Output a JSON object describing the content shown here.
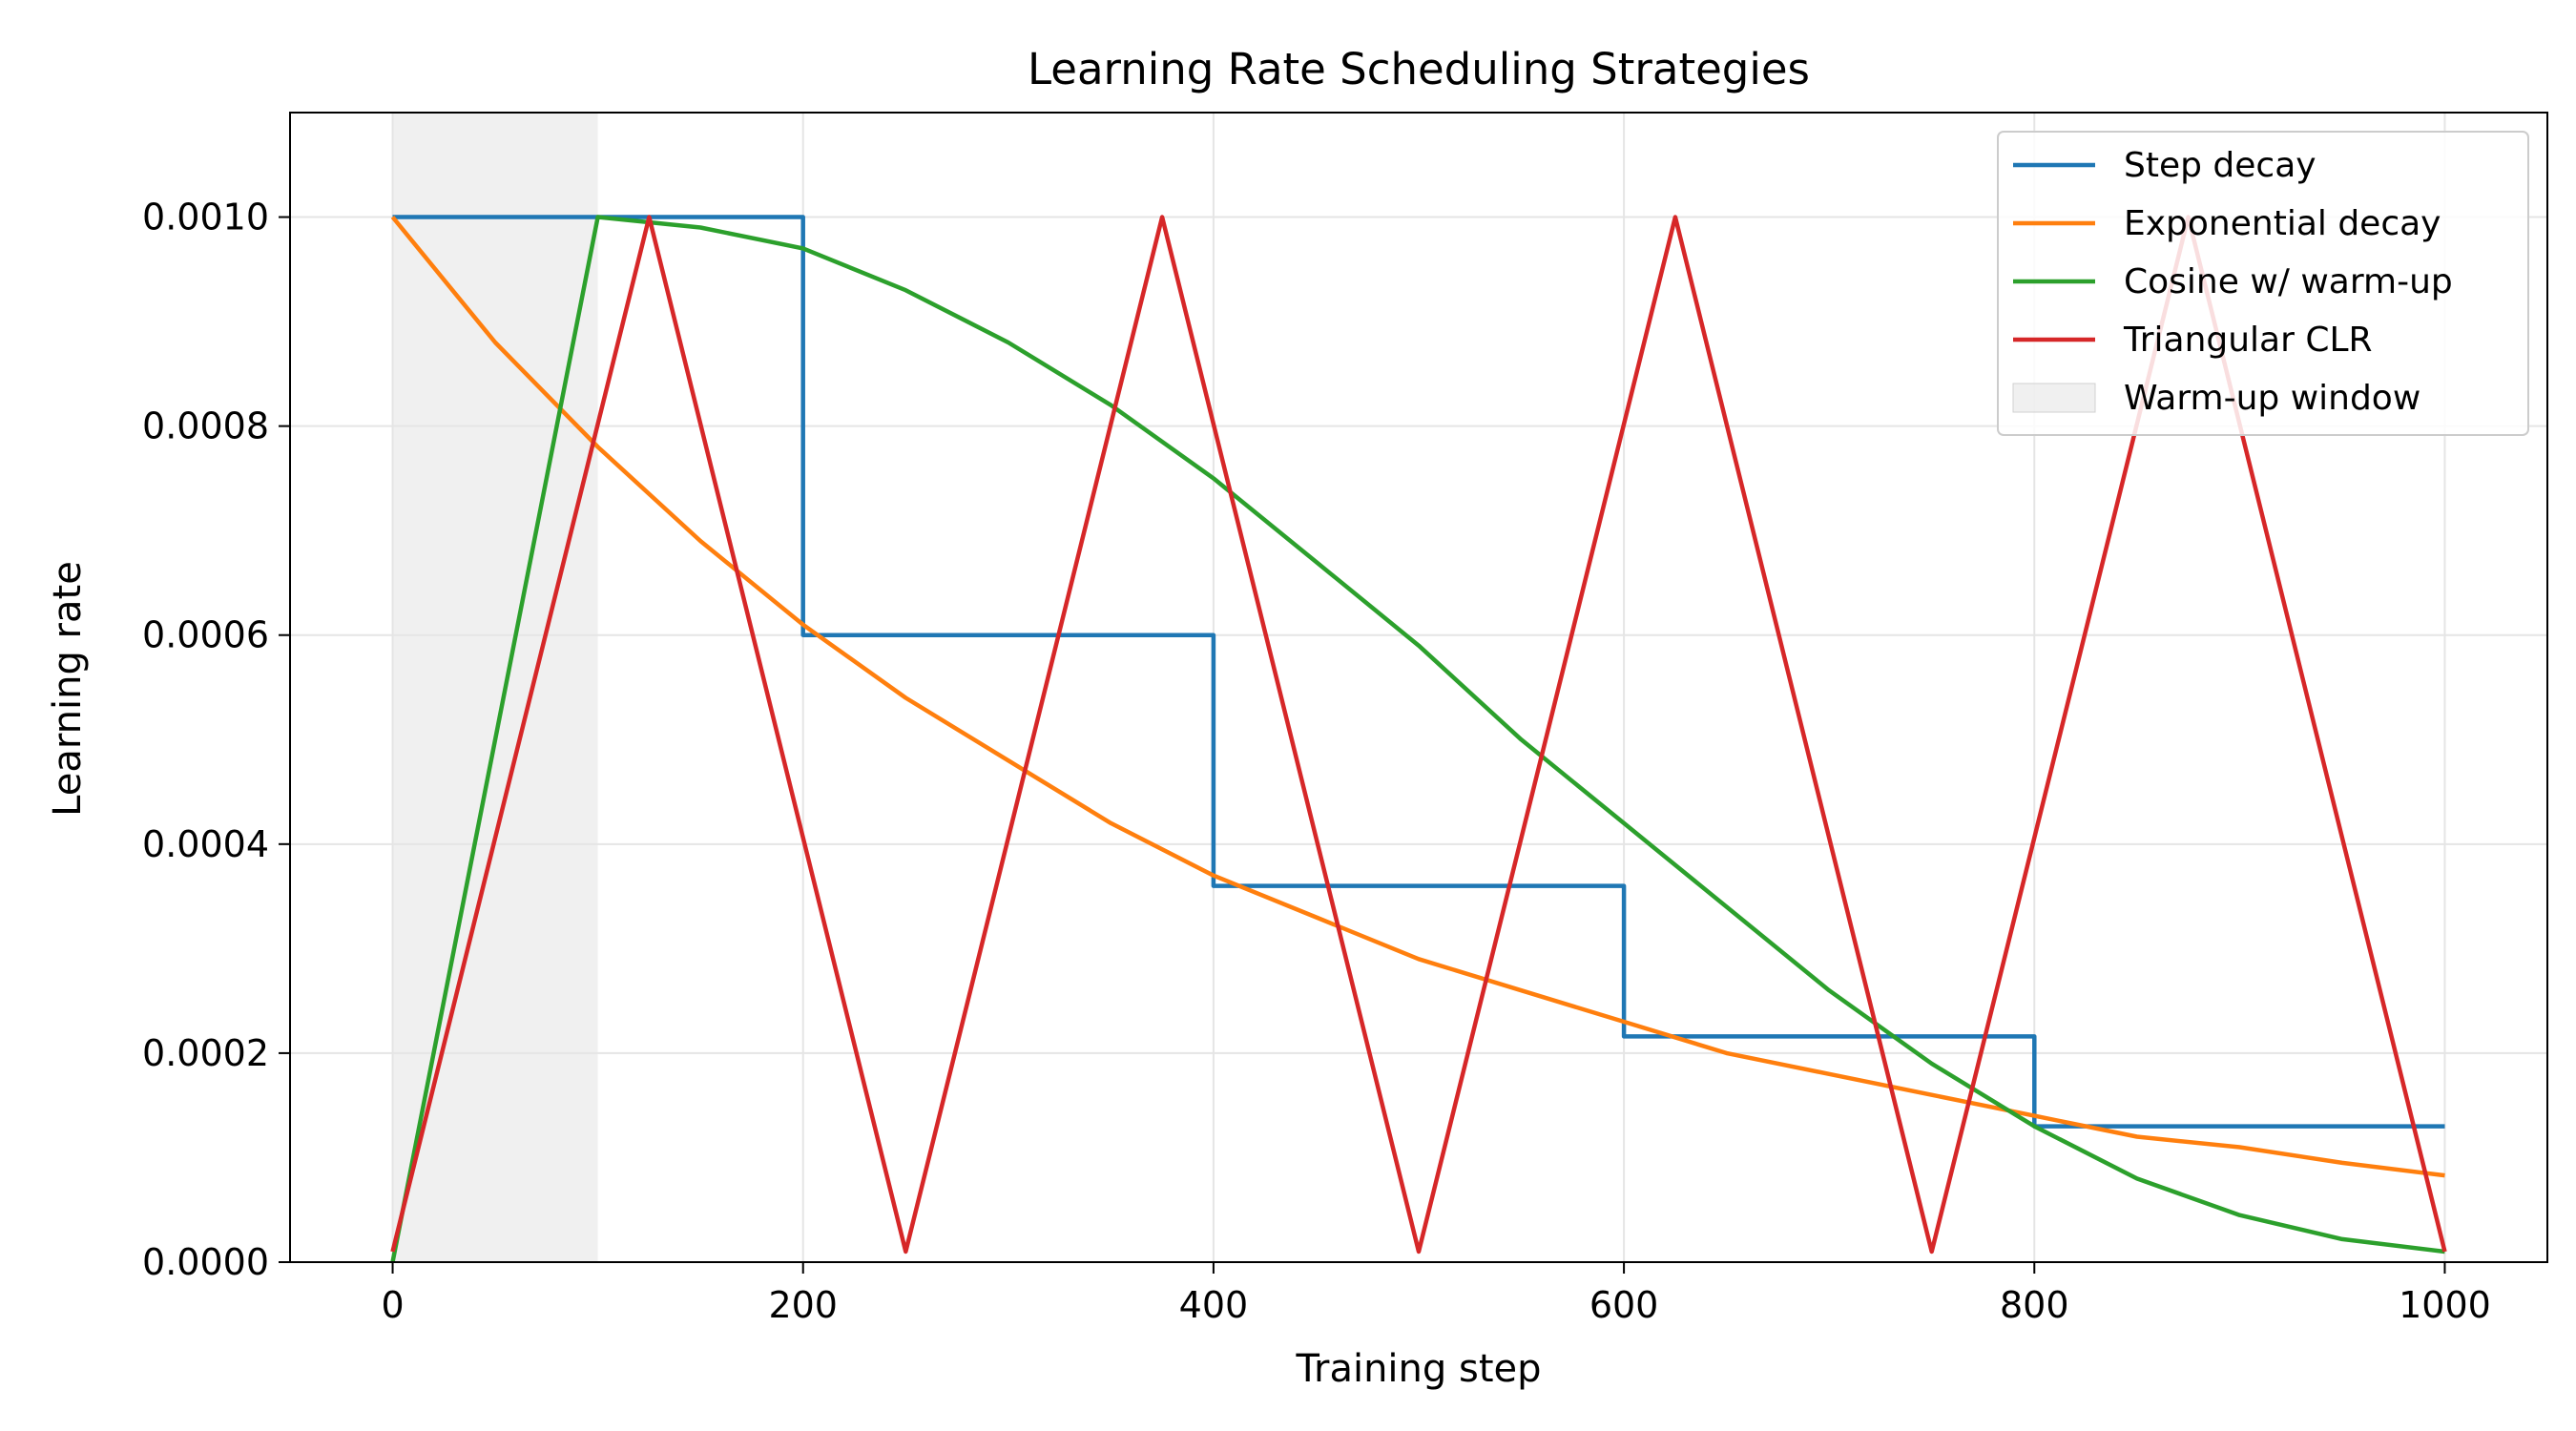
{
  "chart_data": {
    "type": "line",
    "title": "Learning Rate Scheduling Strategies",
    "xlabel": "Training step",
    "ylabel": "Learning rate",
    "xlim": [
      -50,
      1050
    ],
    "ylim": [
      0,
      0.0011
    ],
    "xticks": [
      0,
      200,
      400,
      600,
      800,
      1000
    ],
    "xtick_labels": [
      "0",
      "200",
      "400",
      "600",
      "800",
      "1000"
    ],
    "yticks": [
      0,
      0.0002,
      0.0004,
      0.0006,
      0.0008,
      0.001
    ],
    "ytick_labels": [
      "0.0000",
      "0.0002",
      "0.0004",
      "0.0006",
      "0.0008",
      "0.0010"
    ],
    "grid": true,
    "legend_position": "top-right",
    "shaded_region": {
      "label": "Warm-up window",
      "x_start": 0,
      "x_end": 100,
      "color": "#e6e6e6"
    },
    "series": [
      {
        "name": "Step decay",
        "color": "#1f77b4",
        "x": [
          0,
          200,
          200,
          400,
          400,
          600,
          600,
          800,
          800,
          1000
        ],
        "values": [
          0.001,
          0.001,
          0.0006,
          0.0006,
          0.00036,
          0.00036,
          0.000216,
          0.000216,
          0.00013,
          0.00013
        ]
      },
      {
        "name": "Exponential decay",
        "color": "#ff7f0e",
        "x": [
          0,
          50,
          100,
          150,
          200,
          250,
          300,
          350,
          400,
          450,
          500,
          550,
          600,
          650,
          700,
          750,
          800,
          850,
          900,
          950,
          1000
        ],
        "values": [
          0.001,
          0.00088,
          0.00078,
          0.00069,
          0.00061,
          0.00054,
          0.00048,
          0.00042,
          0.00037,
          0.00033,
          0.00029,
          0.00026,
          0.00023,
          0.0002,
          0.00018,
          0.00016,
          0.00014,
          0.00012,
          0.00011,
          9.5e-05,
          8.3e-05
        ]
      },
      {
        "name": "Cosine w/ warm-up",
        "color": "#2ca02c",
        "x": [
          0,
          100,
          150,
          200,
          250,
          300,
          350,
          400,
          450,
          500,
          550,
          600,
          650,
          700,
          750,
          800,
          850,
          900,
          950,
          1000
        ],
        "values": [
          0.0,
          0.001,
          0.00099,
          0.00097,
          0.00093,
          0.00088,
          0.00082,
          0.00075,
          0.00067,
          0.00059,
          0.0005,
          0.00042,
          0.00034,
          0.00026,
          0.00019,
          0.00013,
          8e-05,
          4.5e-05,
          2.2e-05,
          1e-05
        ]
      },
      {
        "name": "Triangular CLR",
        "color": "#d62728",
        "x": [
          0,
          125,
          250,
          375,
          500,
          625,
          750,
          875,
          1000
        ],
        "values": [
          1e-05,
          0.001,
          1e-05,
          0.001,
          1e-05,
          0.001,
          1e-05,
          0.001,
          1e-05
        ]
      }
    ]
  }
}
